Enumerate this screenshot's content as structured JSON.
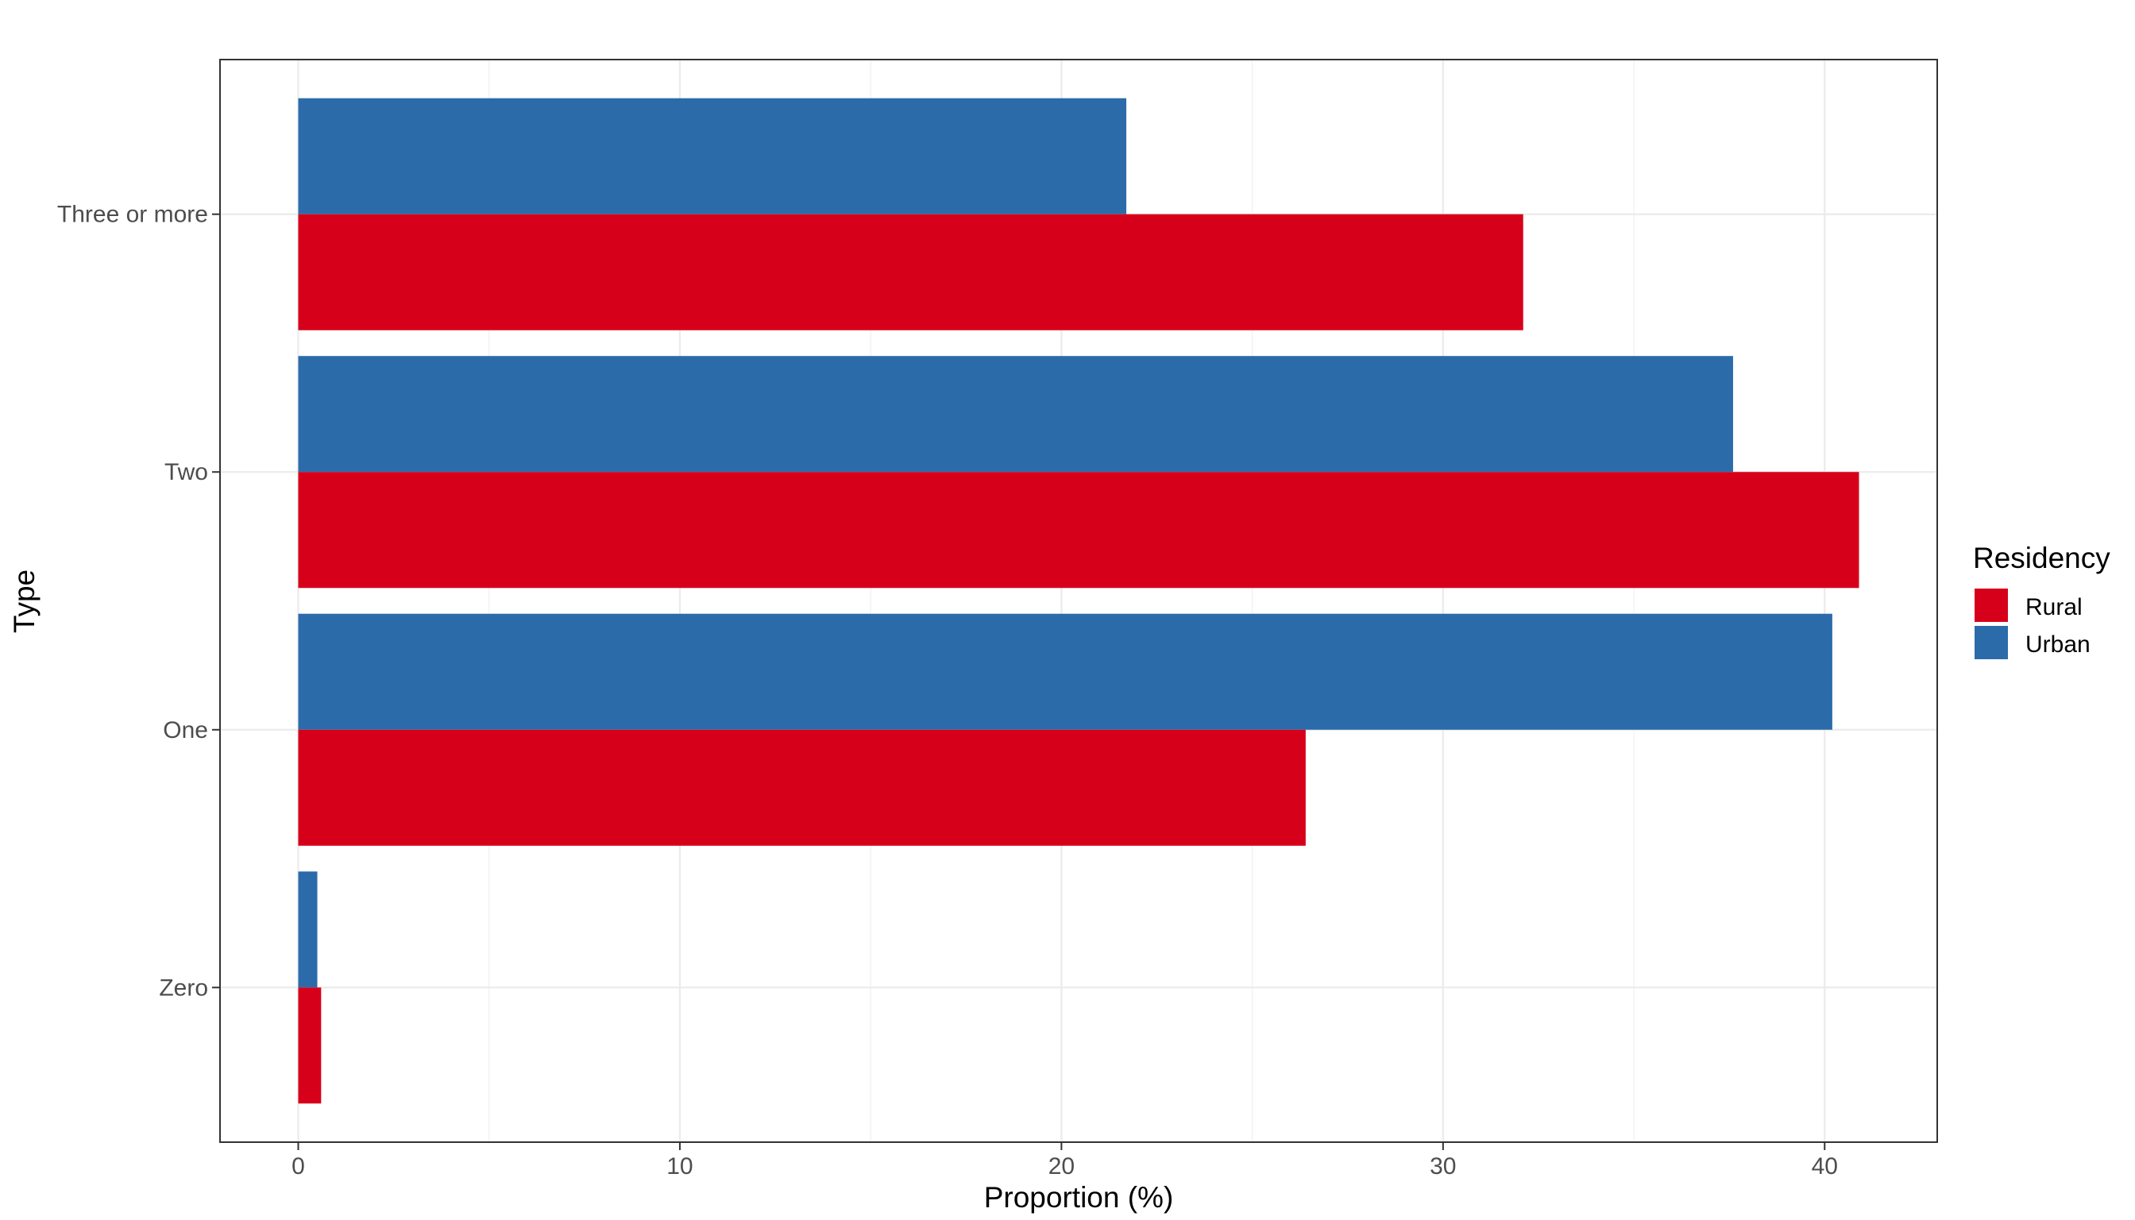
{
  "chart_data": {
    "type": "bar",
    "orientation": "horizontal",
    "categories": [
      "Zero",
      "One",
      "Two",
      "Three or more"
    ],
    "series": [
      {
        "name": "Urban",
        "color": "#2C6BAA",
        "values": [
          0.5,
          40.2,
          37.6,
          21.7
        ]
      },
      {
        "name": "Rural",
        "color": "#D7001A",
        "values": [
          0.6,
          26.4,
          40.9,
          32.1
        ]
      }
    ],
    "xlabel": "Proportion (%)",
    "ylabel": "Type",
    "xlim": [
      -2.05,
      42.95
    ],
    "xticks": [
      0,
      10,
      20,
      30,
      40
    ],
    "xtick_labels": [
      "0",
      "10",
      "20",
      "30",
      "40"
    ],
    "grid": true,
    "legend": {
      "title": "Residency",
      "position": "right",
      "entries": [
        {
          "label": "Rural",
          "color": "#D7001A"
        },
        {
          "label": "Urban",
          "color": "#2C6BAA"
        }
      ]
    }
  }
}
